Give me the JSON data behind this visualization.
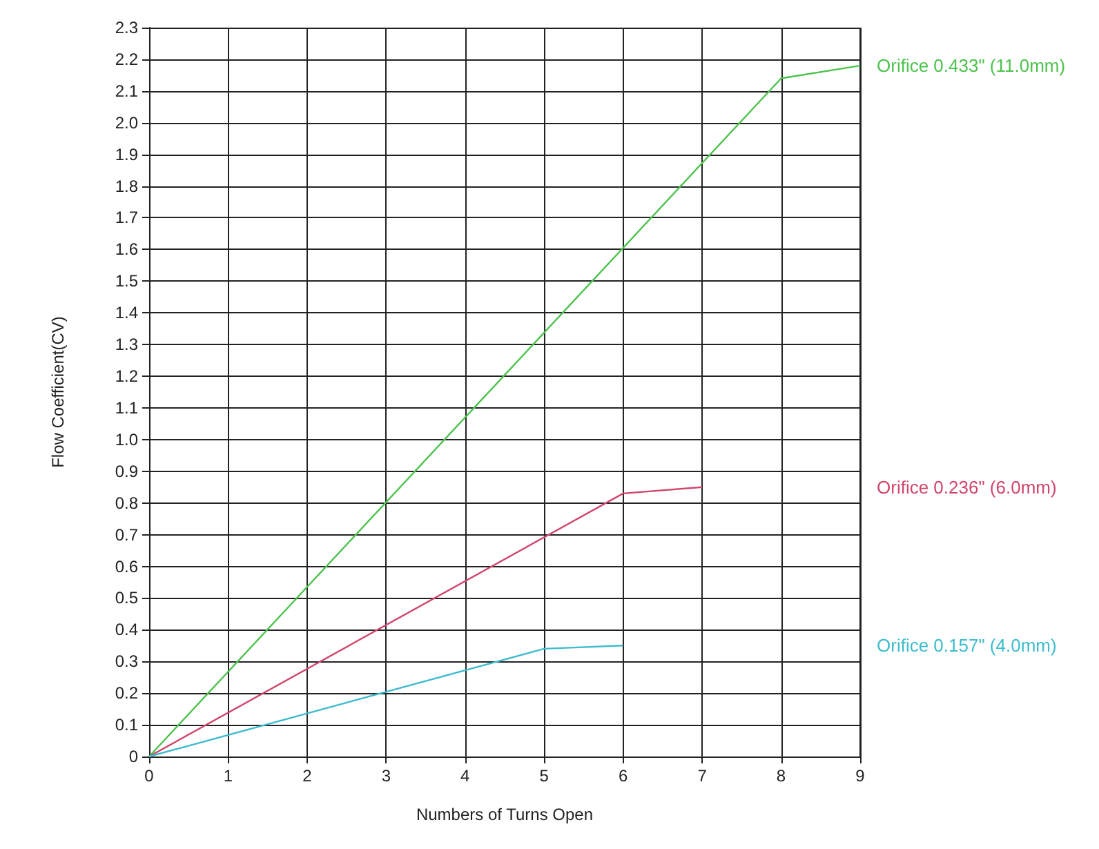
{
  "chart_data": {
    "type": "line",
    "xlabel": "Numbers of Turns Open",
    "ylabel": "Flow Coefficient(CV)",
    "xlim": [
      0,
      9
    ],
    "xticks": [
      0,
      1,
      2,
      3,
      4,
      5,
      6,
      7,
      8,
      9
    ],
    "ylim": [
      0,
      2.3
    ],
    "yticks": [
      0,
      0.1,
      0.2,
      0.3,
      0.4,
      0.5,
      0.6,
      0.7,
      0.8,
      0.9,
      {
        "value": 1,
        "label": "1.0"
      },
      1.1,
      1.2,
      1.3,
      1.4,
      1.5,
      1.6,
      1.7,
      1.8,
      1.9,
      {
        "value": 2,
        "label": "2.0"
      },
      2.1,
      2.2,
      2.3
    ],
    "grid": true,
    "marker": "none",
    "line_style": "solid",
    "series": [
      {
        "name": "Orifice 0.433\" (11.0mm)",
        "color": "#4cc34c",
        "x": [
          0,
          8,
          9
        ],
        "values": [
          0,
          2.14,
          2.18
        ]
      },
      {
        "name": "Orifice 0.236\" (6.0mm)",
        "color": "#d0456b",
        "x": [
          0,
          6,
          7
        ],
        "values": [
          0,
          0.83,
          0.85
        ]
      },
      {
        "name": "Orifice 0.157\" (4.0mm)",
        "color": "#3cbccc",
        "x": [
          0,
          5,
          6
        ],
        "values": [
          0,
          0.34,
          0.35
        ]
      }
    ]
  }
}
